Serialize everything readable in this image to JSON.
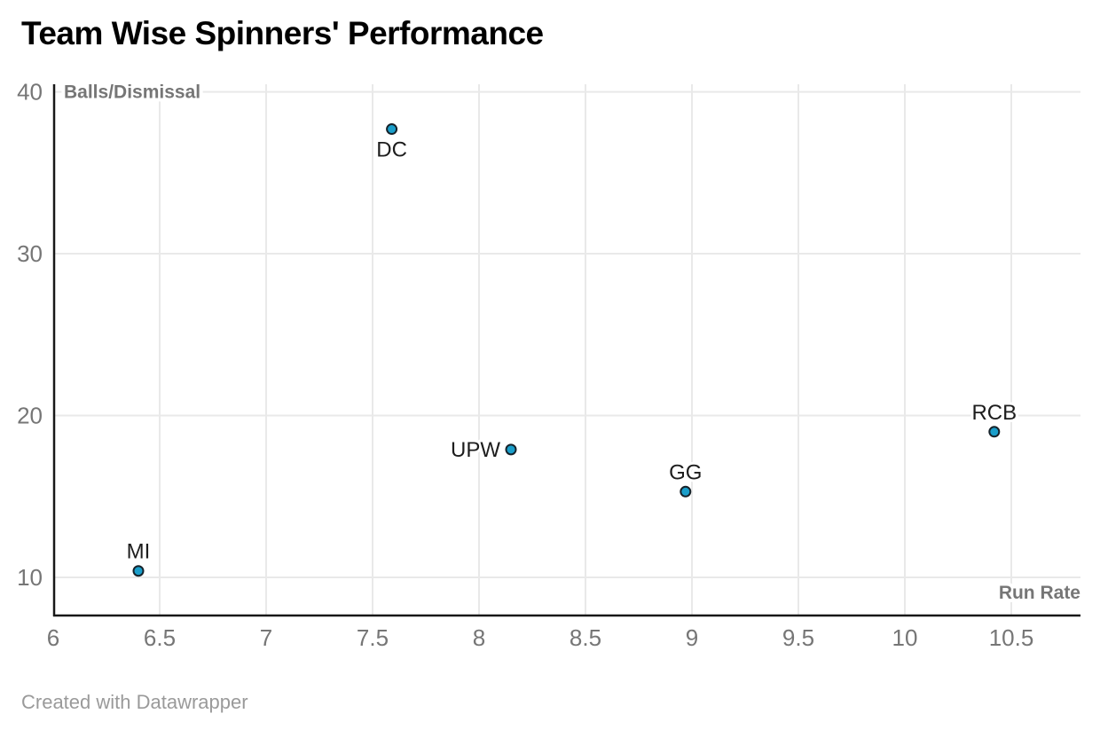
{
  "title": "Team Wise Spinners' Performance",
  "footer_text": "Created with Datawrapper",
  "colors": {
    "title": "#000000",
    "point_fill": "#1a9eca",
    "point_stroke": "#16222a",
    "grid": "#e9e9e9",
    "axis_line": "#181818",
    "tick_label": "#767676",
    "axis_title": "#767676",
    "point_label": "#1d1d1d",
    "footer": "#9a9a9a"
  },
  "chart_data": {
    "type": "scatter",
    "title": "Team Wise Spinners' Performance",
    "xlabel": "Run Rate",
    "ylabel": "Balls/Dismissal",
    "xlim": [
      6,
      10.825
    ],
    "ylim": [
      7.7,
      40.47
    ],
    "grid": true,
    "legend": "none",
    "xticks": [
      {
        "v": 6,
        "label": "6"
      },
      {
        "v": 6.5,
        "label": "6.5"
      },
      {
        "v": 7,
        "label": "7"
      },
      {
        "v": 7.5,
        "label": "7.5"
      },
      {
        "v": 8,
        "label": "8"
      },
      {
        "v": 8.5,
        "label": "8.5"
      },
      {
        "v": 9,
        "label": "9"
      },
      {
        "v": 9.5,
        "label": "9.5"
      },
      {
        "v": 10,
        "label": "10"
      },
      {
        "v": 10.5,
        "label": "10.5"
      }
    ],
    "yticks": [
      {
        "v": 10,
        "label": "10"
      },
      {
        "v": 20,
        "label": "20"
      },
      {
        "v": 30,
        "label": "30"
      },
      {
        "v": 40,
        "label": "40"
      }
    ],
    "points": [
      {
        "label": "MI",
        "x": 6.4,
        "y": 10.4,
        "label_position": "top"
      },
      {
        "label": "DC",
        "x": 7.59,
        "y": 37.7,
        "label_position": "bottom"
      },
      {
        "label": "UPW",
        "x": 8.15,
        "y": 17.9,
        "label_position": "left"
      },
      {
        "label": "GG",
        "x": 8.97,
        "y": 15.3,
        "label_position": "top"
      },
      {
        "label": "RCB",
        "x": 10.42,
        "y": 19.0,
        "label_position": "top"
      }
    ]
  }
}
